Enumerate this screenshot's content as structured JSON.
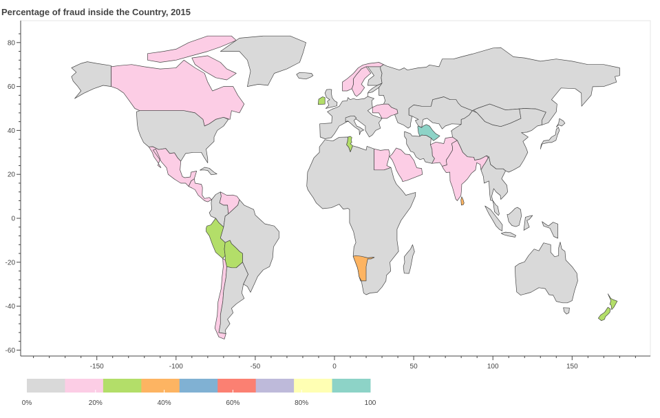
{
  "title": "Percentage of fraud inside the Country, 2015",
  "map": {
    "projection": "equirectangular",
    "x_ticks": [
      -150,
      -100,
      -50,
      0,
      50,
      100,
      150
    ],
    "y_ticks": [
      80,
      60,
      40,
      20,
      0,
      -20,
      -40,
      -60
    ],
    "xlim": [
      -200,
      200
    ],
    "ylim": [
      -64,
      90
    ],
    "ocean_color": "#ffffff",
    "border_color": "#444444",
    "default_color": "#d9d9d9"
  },
  "colorbar": {
    "palette": [
      "#d9d9d9",
      "#fccde5",
      "#b3de69",
      "#fdb462",
      "#80b1d3",
      "#fb8072",
      "#bebada",
      "#ffffb3",
      "#8dd3c7"
    ],
    "labels": [
      {
        "text": "0%",
        "pos": 0
      },
      {
        "text": "20%",
        "pos": 20
      },
      {
        "text": "40%",
        "pos": 40
      },
      {
        "text": "60%",
        "pos": 60
      },
      {
        "text": "80%",
        "pos": 80
      },
      {
        "text": "100",
        "pos": 100
      }
    ]
  },
  "regions": [
    {
      "name": "Canada",
      "color": "#fccde5"
    },
    {
      "name": "United States",
      "color": "#d9d9d9"
    },
    {
      "name": "Alaska",
      "color": "#d9d9d9"
    },
    {
      "name": "Greenland",
      "color": "#d9d9d9"
    },
    {
      "name": "Mexico",
      "color": "#fccde5"
    },
    {
      "name": "Central America",
      "color": "#fccde5"
    },
    {
      "name": "Cuba",
      "color": "#d9d9d9"
    },
    {
      "name": "Colombia",
      "color": "#d9d9d9"
    },
    {
      "name": "Venezuela",
      "color": "#fccde5"
    },
    {
      "name": "Peru",
      "color": "#b3de69"
    },
    {
      "name": "Bolivia",
      "color": "#b3de69"
    },
    {
      "name": "Chile",
      "color": "#fccde5"
    },
    {
      "name": "Brazil",
      "color": "#d9d9d9"
    },
    {
      "name": "Argentina",
      "color": "#d9d9d9"
    },
    {
      "name": "Iceland",
      "color": "#d9d9d9"
    },
    {
      "name": "Ireland",
      "color": "#b3de69"
    },
    {
      "name": "United Kingdom",
      "color": "#d9d9d9"
    },
    {
      "name": "Norway",
      "color": "#fccde5"
    },
    {
      "name": "Sweden",
      "color": "#fccde5"
    },
    {
      "name": "Finland",
      "color": "#d9d9d9"
    },
    {
      "name": "Europe",
      "color": "#d9d9d9"
    },
    {
      "name": "Ukraine",
      "color": "#fccde5"
    },
    {
      "name": "Italy",
      "color": "#d9d9d9"
    },
    {
      "name": "Russia",
      "color": "#d9d9d9"
    },
    {
      "name": "Kazakhstan",
      "color": "#d9d9d9"
    },
    {
      "name": "Turkmenistan",
      "color": "#8dd3c7"
    },
    {
      "name": "Iran",
      "color": "#d9d9d9"
    },
    {
      "name": "Pakistan",
      "color": "#fccde5"
    },
    {
      "name": "India",
      "color": "#fccde5"
    },
    {
      "name": "Sri Lanka",
      "color": "#fdb462"
    },
    {
      "name": "China",
      "color": "#d9d9d9"
    },
    {
      "name": "Mongolia",
      "color": "#d9d9d9"
    },
    {
      "name": "Southeast Asia",
      "color": "#d9d9d9"
    },
    {
      "name": "Japan",
      "color": "#d9d9d9"
    },
    {
      "name": "Indonesia",
      "color": "#d9d9d9"
    },
    {
      "name": "Saudi Arabia",
      "color": "#fccde5"
    },
    {
      "name": "Egypt",
      "color": "#fccde5"
    },
    {
      "name": "Tunisia",
      "color": "#b3de69"
    },
    {
      "name": "Africa",
      "color": "#d9d9d9"
    },
    {
      "name": "Namibia",
      "color": "#fdb462"
    },
    {
      "name": "Madagascar",
      "color": "#d9d9d9"
    },
    {
      "name": "Australia",
      "color": "#d9d9d9"
    },
    {
      "name": "New Zealand",
      "color": "#b3de69"
    }
  ]
}
